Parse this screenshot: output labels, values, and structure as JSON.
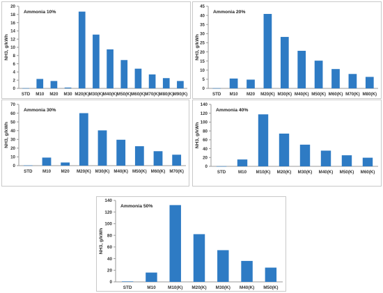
{
  "figure": {
    "panels": [
      {
        "title": "Ammonia 10%",
        "ylabel": "NH3, g/kWh"
      },
      {
        "title": "Ammonia 20%",
        "ylabel": "NH3, g/kWh"
      },
      {
        "title": "Ammonia 30%",
        "ylabel": "NH3, g/kWh"
      },
      {
        "title": "Ammonia 40%",
        "ylabel": "NH3, g/kWh"
      },
      {
        "title": "Ammonia 50%",
        "ylabel": "NH3, g/kWh"
      }
    ]
  },
  "colors": {
    "bar": "#2e7bc4",
    "axis": "#9a9a9a",
    "border": "#c8c8c8"
  },
  "chart_data": [
    {
      "type": "bar",
      "title": "Ammonia 10%",
      "ylabel": "NH3, g/kWh",
      "xlabel": "",
      "ylim": [
        0,
        20
      ],
      "yticks": [
        0,
        2,
        4,
        6,
        8,
        10,
        12,
        14,
        16,
        18,
        20
      ],
      "categories": [
        "STD",
        "M10",
        "M20",
        "M30",
        "M20(K)",
        "M30(K)",
        "M40(K)",
        "M50(K)",
        "M60(K)",
        "M70(K)",
        "M80(K)",
        "M90(K)"
      ],
      "values": [
        0.05,
        2.3,
        1.8,
        0.2,
        18.7,
        13.1,
        9.5,
        6.9,
        4.8,
        3.4,
        2.5,
        1.8
      ]
    },
    {
      "type": "bar",
      "title": "Ammonia 20%",
      "ylabel": "NH3, g/kWh",
      "xlabel": "",
      "ylim": [
        0,
        45
      ],
      "yticks": [
        0,
        5,
        10,
        15,
        20,
        25,
        30,
        35,
        40,
        45
      ],
      "categories": [
        "STD",
        "M10",
        "M20",
        "M20(K)",
        "M30(K)",
        "M40(K)",
        "M50(K)",
        "M60(K)",
        "M70(K)",
        "M80(K)"
      ],
      "values": [
        0.1,
        5.4,
        4.8,
        40.8,
        28.2,
        20.6,
        15.2,
        10.6,
        7.9,
        6.3
      ]
    },
    {
      "type": "bar",
      "title": "Ammonia 30%",
      "ylabel": "NH3, g/kWh",
      "xlabel": "",
      "ylim": [
        0,
        70
      ],
      "yticks": [
        0,
        10,
        20,
        30,
        40,
        50,
        60,
        70
      ],
      "categories": [
        "STD",
        "M10",
        "M20",
        "M20(K)",
        "M30(K)",
        "M40(K)",
        "M50(K)",
        "M60(K)",
        "M70(K)"
      ],
      "values": [
        0.3,
        9.2,
        3.6,
        60.0,
        40.3,
        29.6,
        22.2,
        16.5,
        12.5
      ]
    },
    {
      "type": "bar",
      "title": "Ammonia 40%",
      "ylabel": "NH3, g/kWh",
      "xlabel": "",
      "ylim": [
        0,
        140
      ],
      "yticks": [
        0,
        20,
        40,
        60,
        80,
        100,
        120,
        140
      ],
      "categories": [
        "STD",
        "M10",
        "M10(K)",
        "M20(K)",
        "M30(K)",
        "M40(K)",
        "M50(K)",
        "M60(K)"
      ],
      "values": [
        0.3,
        15.5,
        117.5,
        74.0,
        49.0,
        35.5,
        25.0,
        19.5
      ]
    },
    {
      "type": "bar",
      "title": "Ammonia 50%",
      "ylabel": "NH3, g/kWh",
      "xlabel": "",
      "ylim": [
        0,
        140
      ],
      "yticks": [
        0,
        20,
        40,
        60,
        80,
        100,
        120,
        140
      ],
      "categories": [
        "STD",
        "M10",
        "M10(K)",
        "M20(K)",
        "M30(K)",
        "M40(K)",
        "M50(K)"
      ],
      "values": [
        0.8,
        16.0,
        132.0,
        82.0,
        54.5,
        36.0,
        24.5
      ]
    }
  ]
}
